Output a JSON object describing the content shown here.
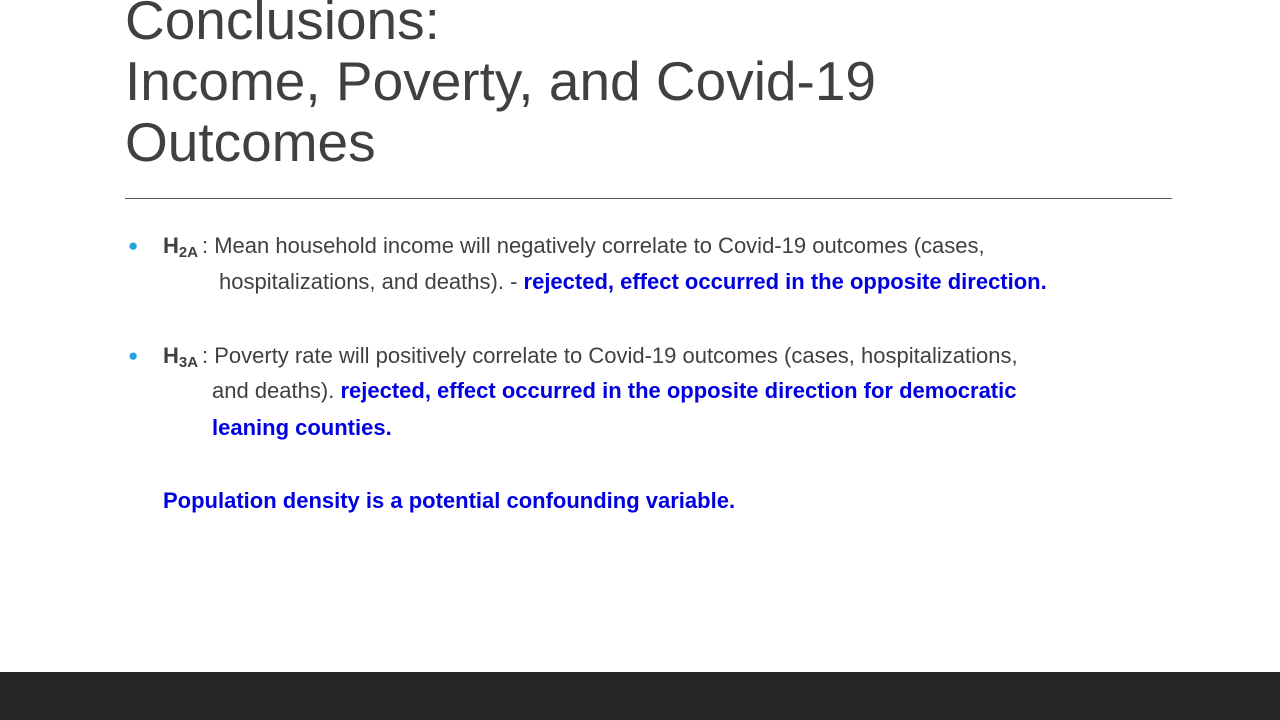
{
  "slide": {
    "title_lines": [
      "Conclusions:",
      "Income, Poverty, and Covid-19",
      "Outcomes"
    ],
    "hypotheses": [
      {
        "label_main": "H",
        "label_sub": "2A",
        "line1": ": Mean household income will negatively correlate to Covid-19 outcomes (cases,",
        "line2_plain": "hospitalizations, and deaths). - ",
        "line2_emphasis": "rejected, effect occurred in the opposite direction."
      },
      {
        "label_main": "H",
        "label_sub": "3A",
        "line1": ": Poverty rate will positively correlate to Covid-19 outcomes (cases, hospitalizations,",
        "line2_plain": "and deaths). ",
        "line2_emphasis": "rejected, effect occurred in the opposite direction for democratic",
        "line3_emphasis": "leaning counties."
      }
    ],
    "note": "Population density is a potential confounding variable.",
    "colors": {
      "title": "#404040",
      "body": "#404040",
      "emphasis": "#0000e0",
      "bullet": "#29a3dd",
      "footer": "#262626"
    }
  }
}
